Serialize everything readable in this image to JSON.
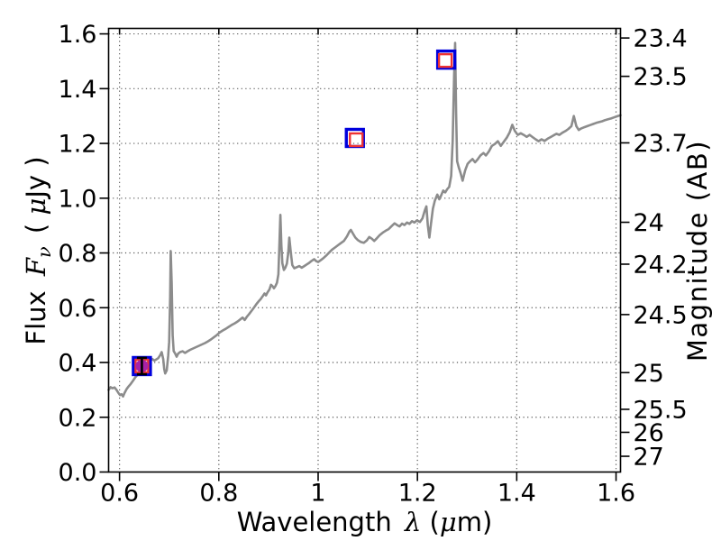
{
  "chart_data": {
    "type": "line",
    "title": "",
    "xlabel_segments": [
      {
        "t": "Wavelength "
      },
      {
        "t": "λ",
        "math": true,
        "dx": 5
      },
      {
        "t": " ("
      },
      {
        "t": "μ",
        "math": true
      },
      {
        "t": "m)"
      }
    ],
    "ylabel_left_segments": [
      {
        "t": "Flux "
      },
      {
        "t": "F",
        "math": true,
        "dx": 7
      },
      {
        "t": "ν",
        "math": true,
        "sub": true
      },
      {
        "t": " ( ",
        "dx": 5
      },
      {
        "t": "μ",
        "math": true
      },
      {
        "t": "Jy )"
      }
    ],
    "ylabel_right": "Magnitude (AB)",
    "xlim": [
      0.578,
      1.609
    ],
    "ylim": [
      0.0,
      1.62
    ],
    "grid": "dotted",
    "x_ticks": {
      "values": [
        0.6,
        0.8,
        1.0,
        1.2,
        1.4,
        1.6
      ],
      "labels": [
        "0.6",
        "0.8",
        "1",
        "1.2",
        "1.4",
        "1.6"
      ]
    },
    "y_ticks_left": {
      "values": [
        0.0,
        0.2,
        0.4,
        0.6,
        0.8,
        1.0,
        1.2,
        1.4,
        1.6
      ],
      "labels": [
        "0.0",
        "0.2",
        "0.4",
        "0.6",
        "0.8",
        "1.0",
        "1.2",
        "1.4",
        "1.6"
      ]
    },
    "y_ticks_right": {
      "flux_positions": [
        1.585,
        1.445,
        1.202,
        0.912,
        0.759,
        0.575,
        0.363,
        0.229,
        0.145,
        0.0575
      ],
      "labels": [
        "23.4",
        "23.5",
        "23.7",
        "24",
        "24.2",
        "24.5",
        "25",
        "25.5",
        "26",
        "27"
      ]
    },
    "series": [
      {
        "name": "spectrum",
        "color": "#8c8c8c",
        "points": [
          [
            0.578,
            0.3
          ],
          [
            0.582,
            0.31
          ],
          [
            0.586,
            0.306
          ],
          [
            0.59,
            0.309
          ],
          [
            0.594,
            0.3
          ],
          [
            0.598,
            0.288
          ],
          [
            0.601,
            0.281
          ],
          [
            0.604,
            0.284
          ],
          [
            0.607,
            0.276
          ],
          [
            0.61,
            0.288
          ],
          [
            0.614,
            0.302
          ],
          [
            0.618,
            0.312
          ],
          [
            0.622,
            0.32
          ],
          [
            0.627,
            0.333
          ],
          [
            0.632,
            0.346
          ],
          [
            0.637,
            0.357
          ],
          [
            0.641,
            0.366
          ],
          [
            0.645,
            0.379
          ],
          [
            0.649,
            0.388
          ],
          [
            0.653,
            0.394
          ],
          [
            0.657,
            0.401
          ],
          [
            0.662,
            0.407
          ],
          [
            0.666,
            0.413
          ],
          [
            0.67,
            0.407
          ],
          [
            0.674,
            0.411
          ],
          [
            0.678,
            0.416
          ],
          [
            0.682,
            0.427
          ],
          [
            0.685,
            0.438
          ],
          [
            0.688,
            0.413
          ],
          [
            0.69,
            0.376
          ],
          [
            0.692,
            0.36
          ],
          [
            0.695,
            0.371
          ],
          [
            0.698,
            0.423
          ],
          [
            0.7,
            0.475
          ],
          [
            0.702,
            0.64
          ],
          [
            0.703,
            0.807
          ],
          [
            0.705,
            0.69
          ],
          [
            0.707,
            0.498
          ],
          [
            0.709,
            0.442
          ],
          [
            0.712,
            0.433
          ],
          [
            0.715,
            0.421
          ],
          [
            0.718,
            0.432
          ],
          [
            0.722,
            0.438
          ],
          [
            0.727,
            0.441
          ],
          [
            0.732,
            0.435
          ],
          [
            0.737,
            0.441
          ],
          [
            0.742,
            0.446
          ],
          [
            0.748,
            0.451
          ],
          [
            0.754,
            0.456
          ],
          [
            0.76,
            0.461
          ],
          [
            0.766,
            0.466
          ],
          [
            0.772,
            0.471
          ],
          [
            0.778,
            0.477
          ],
          [
            0.784,
            0.484
          ],
          [
            0.79,
            0.492
          ],
          [
            0.796,
            0.5
          ],
          [
            0.802,
            0.51
          ],
          [
            0.808,
            0.517
          ],
          [
            0.814,
            0.523
          ],
          [
            0.82,
            0.53
          ],
          [
            0.826,
            0.537
          ],
          [
            0.832,
            0.543
          ],
          [
            0.838,
            0.55
          ],
          [
            0.843,
            0.557
          ],
          [
            0.848,
            0.564
          ],
          [
            0.852,
            0.555
          ],
          [
            0.856,
            0.566
          ],
          [
            0.861,
            0.577
          ],
          [
            0.866,
            0.589
          ],
          [
            0.871,
            0.601
          ],
          [
            0.876,
            0.614
          ],
          [
            0.88,
            0.623
          ],
          [
            0.884,
            0.631
          ],
          [
            0.888,
            0.641
          ],
          [
            0.892,
            0.652
          ],
          [
            0.895,
            0.645
          ],
          [
            0.898,
            0.656
          ],
          [
            0.902,
            0.667
          ],
          [
            0.905,
            0.684
          ],
          [
            0.908,
            0.679
          ],
          [
            0.911,
            0.671
          ],
          [
            0.914,
            0.679
          ],
          [
            0.917,
            0.691
          ],
          [
            0.92,
            0.722
          ],
          [
            0.922,
            0.83
          ],
          [
            0.924,
            0.939
          ],
          [
            0.926,
            0.828
          ],
          [
            0.928,
            0.762
          ],
          [
            0.931,
            0.738
          ],
          [
            0.934,
            0.746
          ],
          [
            0.937,
            0.761
          ],
          [
            0.94,
            0.802
          ],
          [
            0.942,
            0.856
          ],
          [
            0.945,
            0.801
          ],
          [
            0.948,
            0.756
          ],
          [
            0.952,
            0.744
          ],
          [
            0.957,
            0.748
          ],
          [
            0.962,
            0.752
          ],
          [
            0.967,
            0.746
          ],
          [
            0.972,
            0.752
          ],
          [
            0.977,
            0.758
          ],
          [
            0.982,
            0.764
          ],
          [
            0.987,
            0.771
          ],
          [
            0.992,
            0.777
          ],
          [
            0.996,
            0.77
          ],
          [
            1.0,
            0.767
          ],
          [
            1.005,
            0.773
          ],
          [
            1.01,
            0.78
          ],
          [
            1.016,
            0.79
          ],
          [
            1.022,
            0.801
          ],
          [
            1.028,
            0.812
          ],
          [
            1.034,
            0.82
          ],
          [
            1.04,
            0.828
          ],
          [
            1.046,
            0.836
          ],
          [
            1.052,
            0.844
          ],
          [
            1.058,
            0.86
          ],
          [
            1.063,
            0.878
          ],
          [
            1.066,
            0.884
          ],
          [
            1.07,
            0.871
          ],
          [
            1.075,
            0.856
          ],
          [
            1.08,
            0.847
          ],
          [
            1.086,
            0.84
          ],
          [
            1.092,
            0.837
          ],
          [
            1.098,
            0.846
          ],
          [
            1.103,
            0.858
          ],
          [
            1.108,
            0.852
          ],
          [
            1.113,
            0.844
          ],
          [
            1.118,
            0.853
          ],
          [
            1.124,
            0.865
          ],
          [
            1.13,
            0.874
          ],
          [
            1.136,
            0.881
          ],
          [
            1.142,
            0.887
          ],
          [
            1.148,
            0.898
          ],
          [
            1.154,
            0.908
          ],
          [
            1.159,
            0.902
          ],
          [
            1.164,
            0.897
          ],
          [
            1.169,
            0.907
          ],
          [
            1.174,
            0.902
          ],
          [
            1.179,
            0.911
          ],
          [
            1.184,
            0.906
          ],
          [
            1.189,
            0.916
          ],
          [
            1.194,
            0.911
          ],
          [
            1.199,
            0.919
          ],
          [
            1.205,
            0.913
          ],
          [
            1.21,
            0.926
          ],
          [
            1.215,
            0.956
          ],
          [
            1.218,
            0.97
          ],
          [
            1.221,
            0.901
          ],
          [
            1.224,
            0.856
          ],
          [
            1.227,
            0.901
          ],
          [
            1.231,
            0.961
          ],
          [
            1.235,
            0.991
          ],
          [
            1.24,
            1.013
          ],
          [
            1.244,
            0.996
          ],
          [
            1.248,
            1.011
          ],
          [
            1.252,
            1.028
          ],
          [
            1.256,
            1.021
          ],
          [
            1.26,
            1.033
          ],
          [
            1.264,
            1.041
          ],
          [
            1.268,
            1.081
          ],
          [
            1.271,
            1.21
          ],
          [
            1.274,
            1.45
          ],
          [
            1.276,
            1.567
          ],
          [
            1.278,
            1.31
          ],
          [
            1.28,
            1.135
          ],
          [
            1.283,
            1.114
          ],
          [
            1.287,
            1.091
          ],
          [
            1.291,
            1.064
          ],
          [
            1.296,
            1.101
          ],
          [
            1.301,
            1.125
          ],
          [
            1.306,
            1.135
          ],
          [
            1.311,
            1.143
          ],
          [
            1.316,
            1.131
          ],
          [
            1.321,
            1.141
          ],
          [
            1.327,
            1.156
          ],
          [
            1.333,
            1.165
          ],
          [
            1.338,
            1.156
          ],
          [
            1.344,
            1.171
          ],
          [
            1.35,
            1.191
          ],
          [
            1.356,
            1.198
          ],
          [
            1.362,
            1.208
          ],
          [
            1.368,
            1.191
          ],
          [
            1.374,
            1.206
          ],
          [
            1.38,
            1.221
          ],
          [
            1.386,
            1.241
          ],
          [
            1.391,
            1.268
          ],
          [
            1.396,
            1.246
          ],
          [
            1.402,
            1.231
          ],
          [
            1.408,
            1.237
          ],
          [
            1.414,
            1.231
          ],
          [
            1.42,
            1.224
          ],
          [
            1.426,
            1.231
          ],
          [
            1.432,
            1.223
          ],
          [
            1.438,
            1.215
          ],
          [
            1.444,
            1.208
          ],
          [
            1.45,
            1.215
          ],
          [
            1.456,
            1.209
          ],
          [
            1.462,
            1.217
          ],
          [
            1.468,
            1.223
          ],
          [
            1.474,
            1.229
          ],
          [
            1.48,
            1.235
          ],
          [
            1.486,
            1.231
          ],
          [
            1.492,
            1.239
          ],
          [
            1.498,
            1.245
          ],
          [
            1.504,
            1.253
          ],
          [
            1.51,
            1.263
          ],
          [
            1.515,
            1.3
          ],
          [
            1.52,
            1.263
          ],
          [
            1.525,
            1.249
          ],
          [
            1.53,
            1.255
          ],
          [
            1.536,
            1.259
          ],
          [
            1.542,
            1.263
          ],
          [
            1.548,
            1.267
          ],
          [
            1.554,
            1.271
          ],
          [
            1.56,
            1.275
          ],
          [
            1.566,
            1.278
          ],
          [
            1.572,
            1.281
          ],
          [
            1.578,
            1.285
          ],
          [
            1.584,
            1.288
          ],
          [
            1.59,
            1.291
          ],
          [
            1.596,
            1.295
          ],
          [
            1.602,
            1.299
          ],
          [
            1.609,
            1.303
          ]
        ]
      }
    ],
    "photometry_markers": [
      {
        "x": 0.645,
        "flux": 0.387,
        "blue_square": true,
        "red_square": true,
        "filled_circle": true,
        "yerr": 0.03,
        "red_offset": [
          0,
          0
        ]
      },
      {
        "x": 1.074,
        "flux": 1.22,
        "blue_square": true,
        "red_square": true,
        "filled_circle": false,
        "yerr": 0,
        "red_offset": [
          1.5,
          2
        ]
      },
      {
        "x": 1.258,
        "flux": 1.506,
        "blue_square": true,
        "red_square": true,
        "filled_circle": false,
        "yerr": 0,
        "red_offset": [
          -1,
          1
        ]
      }
    ]
  },
  "colors": {
    "spectrum": "#8c8c8c",
    "blue_marker": "#0000dd",
    "red_marker": "#ee3333",
    "circle_fill": "#a822a8",
    "errorbar": "#000000",
    "grid": "#555555",
    "axis": "#000000",
    "background": "#ffffff"
  }
}
